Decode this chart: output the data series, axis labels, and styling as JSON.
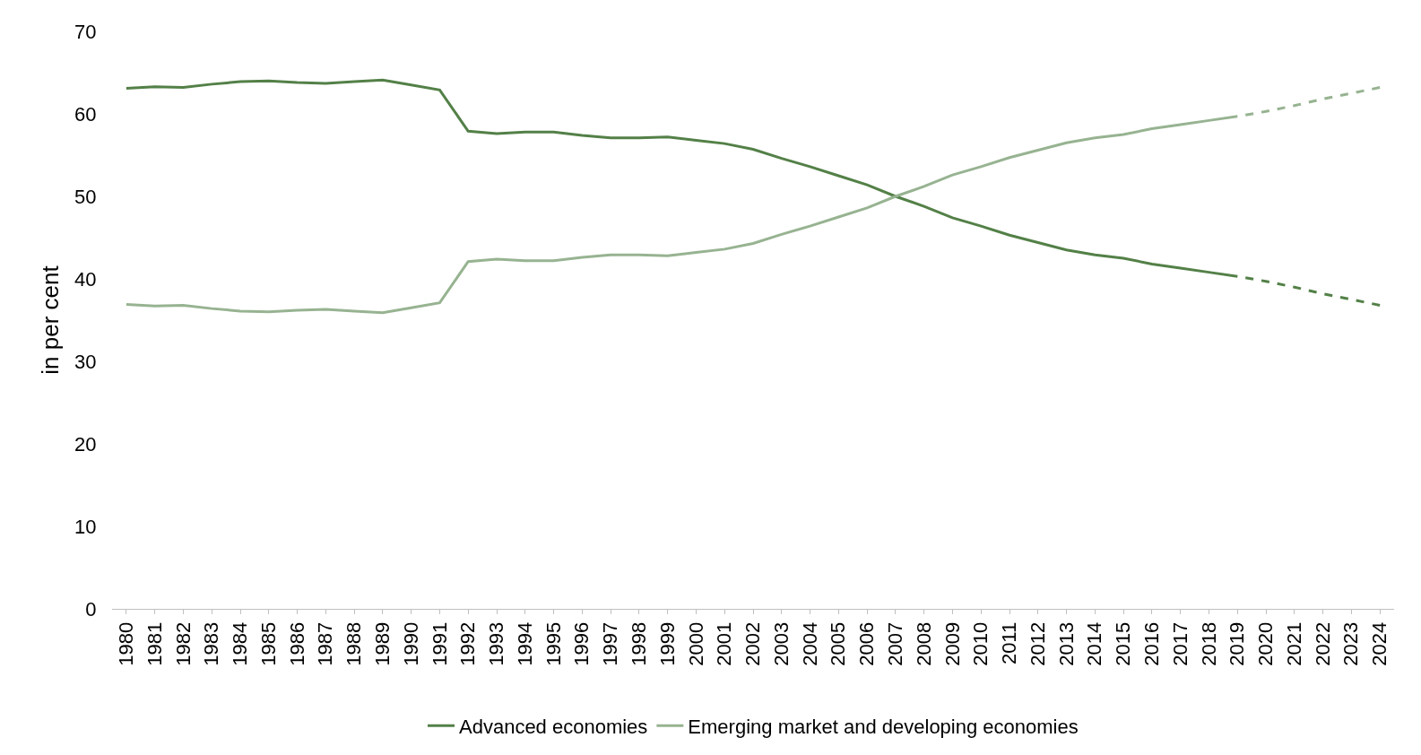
{
  "chart_data": {
    "type": "line",
    "ylabel": "in per cent",
    "categories": [
      "1980",
      "1981",
      "1982",
      "1983",
      "1984",
      "1985",
      "1986",
      "1987",
      "1988",
      "1989",
      "1990",
      "1991",
      "1992",
      "1993",
      "1994",
      "1995",
      "1996",
      "1997",
      "1998",
      "1999",
      "2000",
      "2001",
      "2002",
      "2003",
      "2004",
      "2005",
      "2006",
      "2007",
      "2008",
      "2009",
      "2010",
      "2011",
      "2012",
      "2013",
      "2014",
      "2015",
      "2016",
      "2017",
      "2018",
      "2019",
      "2020",
      "2021",
      "2022",
      "2023",
      "2024"
    ],
    "series": [
      {
        "name": "Advanced economies",
        "color": "#538047",
        "line_style": "solid",
        "values": [
          63.1,
          63.3,
          63.2,
          63.6,
          63.9,
          64.0,
          63.8,
          63.7,
          63.9,
          64.1,
          63.5,
          62.9,
          57.9,
          57.6,
          57.8,
          57.8,
          57.4,
          57.1,
          57.1,
          57.2,
          56.8,
          56.4,
          55.7,
          54.6,
          53.6,
          52.5,
          51.4,
          50.0,
          48.8,
          47.4,
          46.4,
          45.3,
          44.4,
          43.5,
          42.9,
          42.5,
          41.8,
          41.3,
          40.8,
          40.3,
          null,
          null,
          null,
          null,
          null
        ]
      },
      {
        "name": "Emerging market and developing economies",
        "color": "#97b391",
        "line_style": "solid",
        "values": [
          36.9,
          36.7,
          36.8,
          36.4,
          36.1,
          36.0,
          36.2,
          36.3,
          36.1,
          35.9,
          36.5,
          37.1,
          42.1,
          42.4,
          42.2,
          42.2,
          42.6,
          42.9,
          42.9,
          42.8,
          43.2,
          43.6,
          44.3,
          45.4,
          46.4,
          47.5,
          48.6,
          50.0,
          51.2,
          52.6,
          53.6,
          54.7,
          55.6,
          56.5,
          57.1,
          57.5,
          58.2,
          58.7,
          59.2,
          59.7,
          null,
          null,
          null,
          null,
          null
        ]
      },
      {
        "color": "#538047",
        "line_style": "dashed",
        "values": [
          null,
          null,
          null,
          null,
          null,
          null,
          null,
          null,
          null,
          null,
          null,
          null,
          null,
          null,
          null,
          null,
          null,
          null,
          null,
          null,
          null,
          null,
          null,
          null,
          null,
          null,
          null,
          null,
          null,
          null,
          null,
          null,
          null,
          null,
          null,
          null,
          null,
          null,
          null,
          40.3,
          39.7,
          39.0,
          38.2,
          37.5,
          36.8
        ]
      },
      {
        "color": "#97b391",
        "line_style": "dashed",
        "values": [
          null,
          null,
          null,
          null,
          null,
          null,
          null,
          null,
          null,
          null,
          null,
          null,
          null,
          null,
          null,
          null,
          null,
          null,
          null,
          null,
          null,
          null,
          null,
          null,
          null,
          null,
          null,
          null,
          null,
          null,
          null,
          null,
          null,
          null,
          null,
          null,
          null,
          null,
          null,
          59.7,
          60.3,
          61.0,
          61.8,
          62.5,
          63.2
        ]
      }
    ],
    "ylim": [
      0,
      70
    ],
    "yticks": [
      0,
      10,
      20,
      30,
      40,
      50,
      60,
      70
    ],
    "grid": false,
    "legend": "bottom",
    "marker": "none"
  }
}
